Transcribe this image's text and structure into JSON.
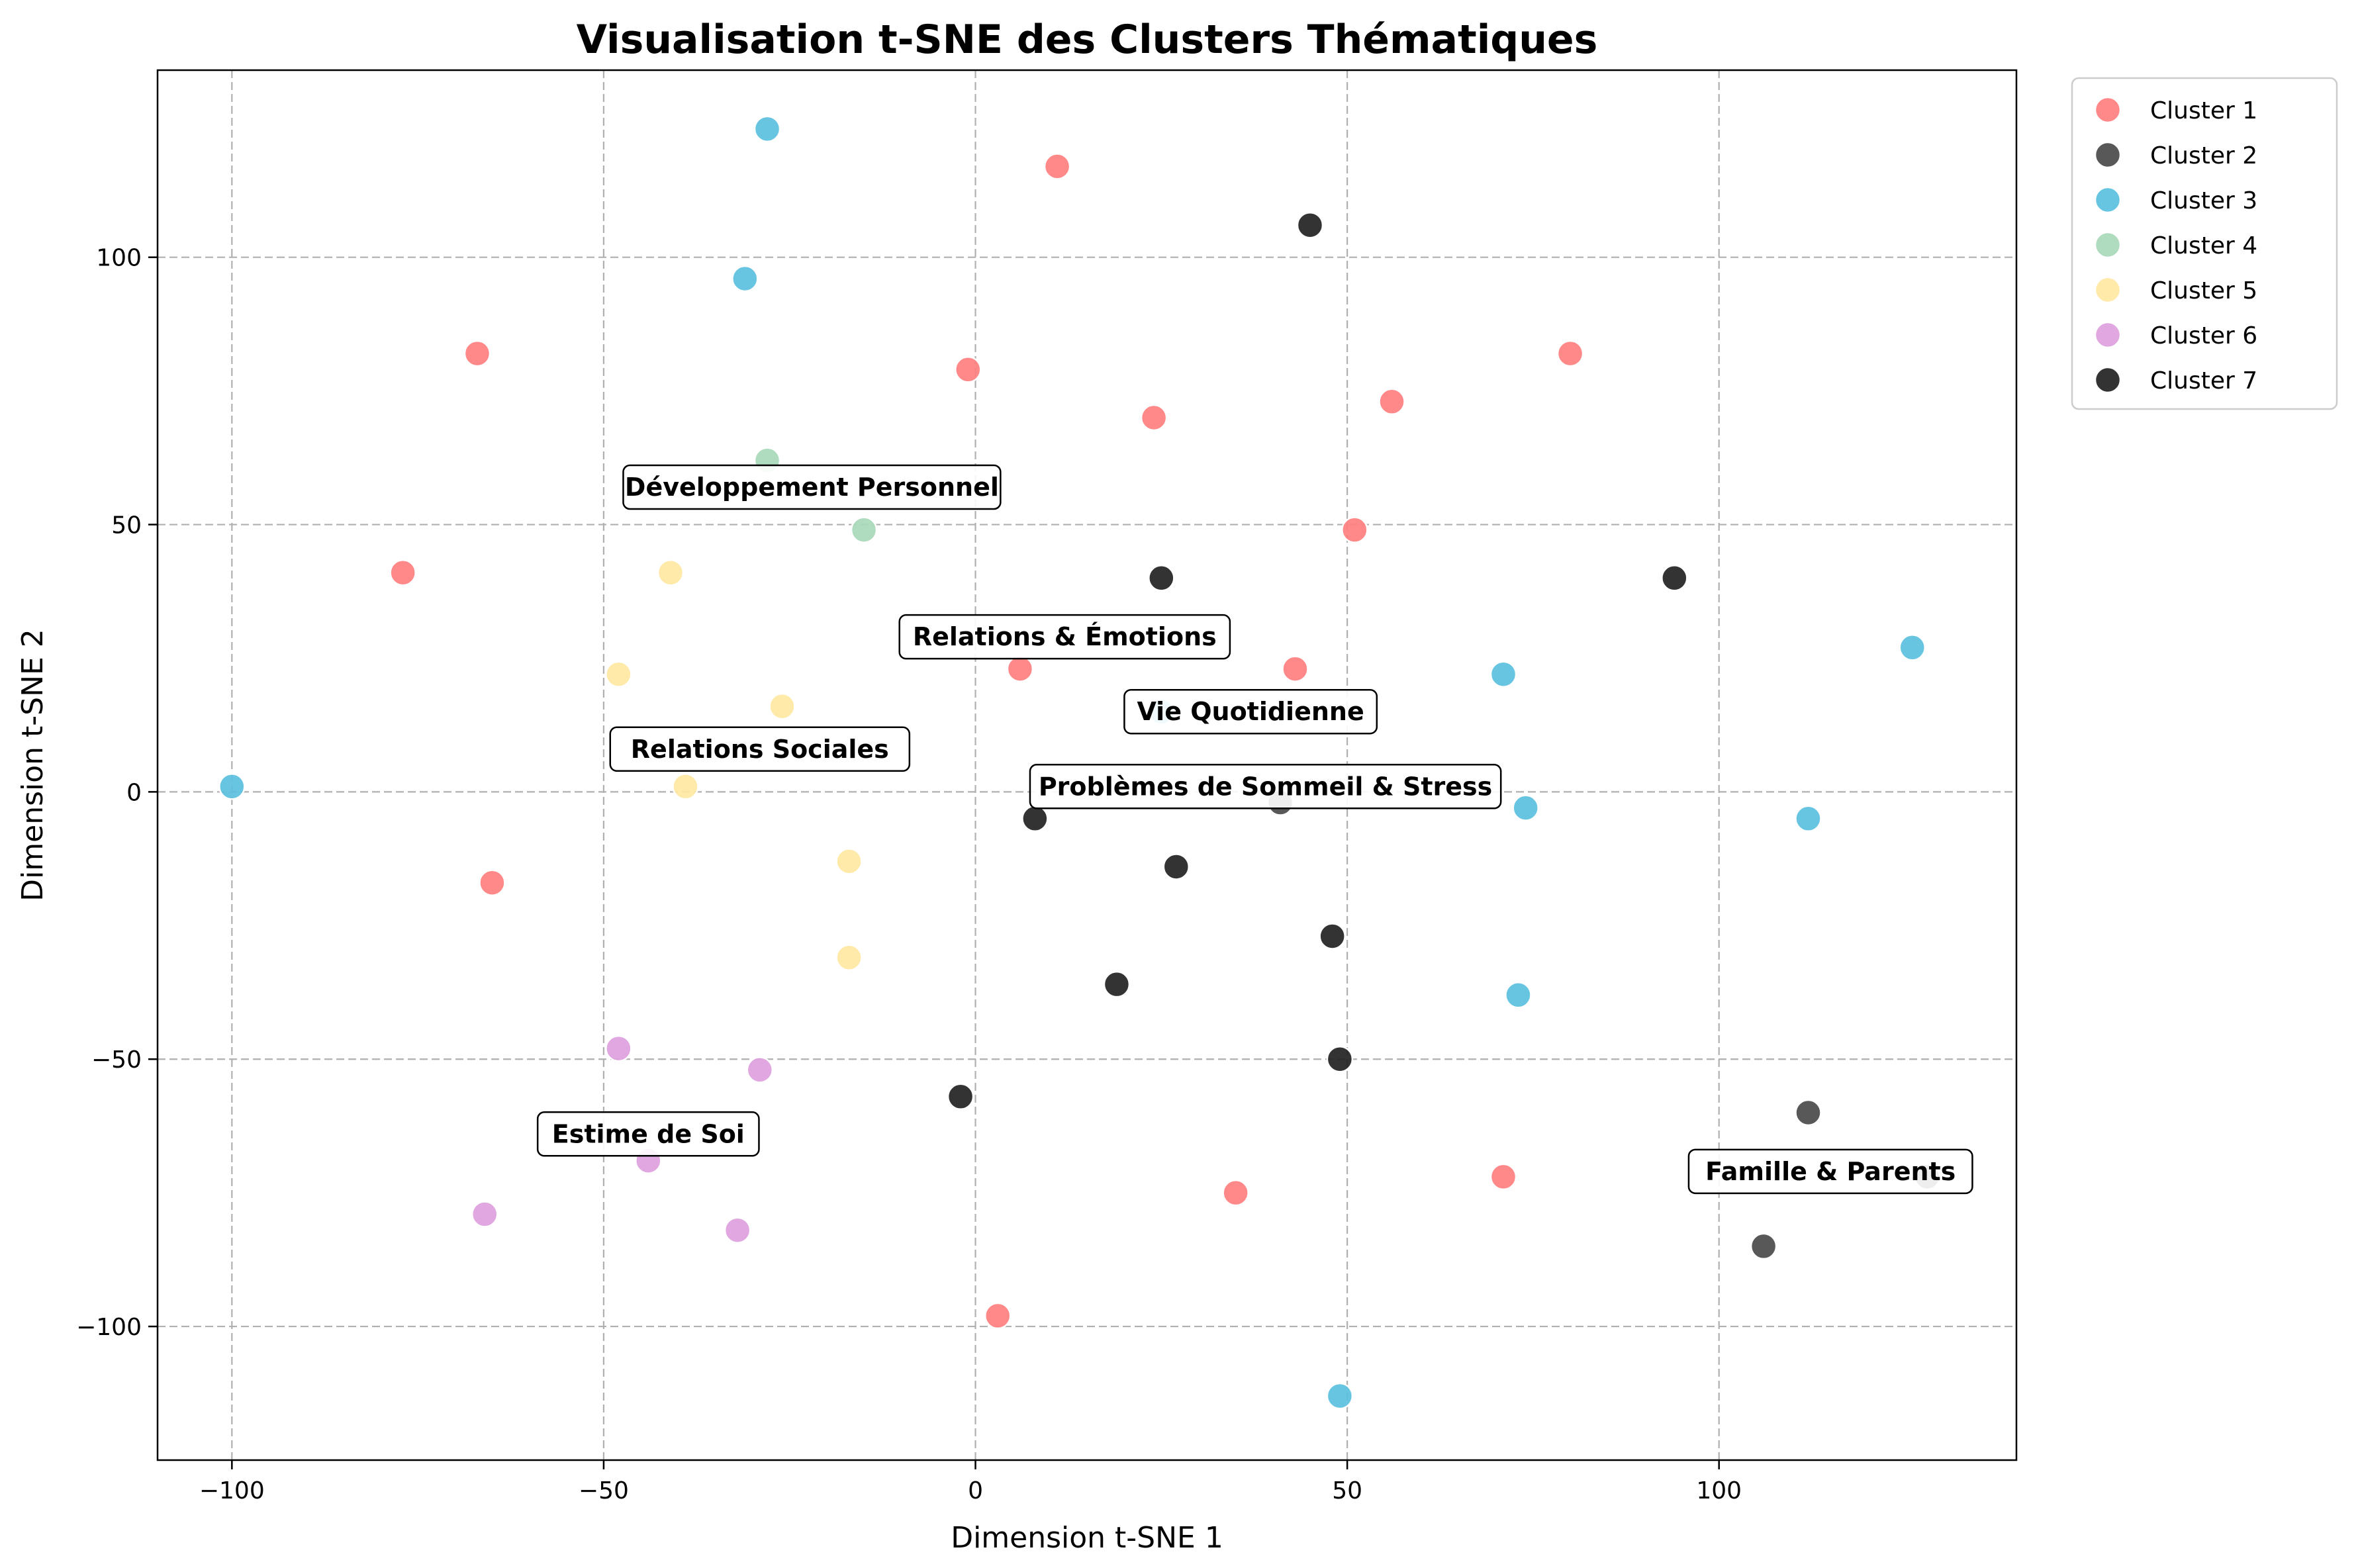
{
  "chart_data": {
    "type": "scatter",
    "title": "Visualisation t-SNE des Clusters Thématiques",
    "xlabel": "Dimension t-SNE 1",
    "ylabel": "Dimension t-SNE 2",
    "xlim": [
      -110,
      140
    ],
    "ylim": [
      -125,
      135
    ],
    "xticks": [
      -100,
      -50,
      0,
      50,
      100
    ],
    "yticks": [
      -100,
      -50,
      0,
      50,
      100
    ],
    "grid": true,
    "legend_position": "outside-top-right",
    "series": [
      {
        "name": "Cluster 1",
        "color": "#FF7F7F",
        "points": [
          [
            11,
            117
          ],
          [
            -67,
            82
          ],
          [
            -1,
            79
          ],
          [
            24,
            70
          ],
          [
            56,
            73
          ],
          [
            80,
            82
          ],
          [
            -77,
            41
          ],
          [
            51,
            49
          ],
          [
            6,
            23
          ],
          [
            43,
            23
          ],
          [
            -65,
            -17
          ],
          [
            35,
            -75
          ],
          [
            71,
            -72
          ],
          [
            3,
            -98
          ]
        ]
      },
      {
        "name": "Cluster 2",
        "color": "#4A4A4A",
        "points": [
          [
            112,
            -60
          ],
          [
            106,
            -85
          ],
          [
            128,
            -72
          ],
          [
            41,
            -2
          ]
        ]
      },
      {
        "name": "Cluster 3",
        "color": "#5BC0DE",
        "points": [
          [
            -28,
            124
          ],
          [
            -31,
            96
          ],
          [
            -100,
            1
          ],
          [
            71,
            22
          ],
          [
            126,
            27
          ],
          [
            112,
            -5
          ],
          [
            74,
            -3
          ],
          [
            73,
            -38
          ],
          [
            49,
            -113
          ],
          [
            25,
            15
          ]
        ]
      },
      {
        "name": "Cluster 4",
        "color": "#A8D8B9",
        "points": [
          [
            -28,
            62
          ],
          [
            -15,
            49
          ]
        ]
      },
      {
        "name": "Cluster 5",
        "color": "#FFE8A3",
        "points": [
          [
            -41,
            41
          ],
          [
            -48,
            22
          ],
          [
            -26,
            16
          ],
          [
            -39,
            1
          ],
          [
            -17,
            -13
          ],
          [
            -17,
            -31
          ]
        ]
      },
      {
        "name": "Cluster 6",
        "color": "#DDA0DD",
        "points": [
          [
            -48,
            -48
          ],
          [
            -29,
            -52
          ],
          [
            -44,
            -69
          ],
          [
            -66,
            -79
          ],
          [
            -32,
            -82
          ]
        ]
      },
      {
        "name": "Cluster 7",
        "color": "#222222",
        "points": [
          [
            45,
            106
          ],
          [
            25,
            40
          ],
          [
            94,
            40
          ],
          [
            8,
            -5
          ],
          [
            27,
            -14
          ],
          [
            48,
            -27
          ],
          [
            19,
            -36
          ],
          [
            49,
            -50
          ],
          [
            -2,
            -57
          ]
        ]
      }
    ],
    "annotations": [
      {
        "text": "Développement Personnel",
        "x": -22,
        "y": 57
      },
      {
        "text": "Relations & Émotions",
        "x": 12,
        "y": 29
      },
      {
        "text": "Vie Quotidienne",
        "x": 37,
        "y": 15
      },
      {
        "text": "Relations Sociales",
        "x": -29,
        "y": 8
      },
      {
        "text": "Problèmes de Sommeil & Stress",
        "x": 39,
        "y": 1
      },
      {
        "text": "Estime de Soi",
        "x": -44,
        "y": -64
      },
      {
        "text": "Famille & Parents",
        "x": 115,
        "y": -71
      }
    ]
  }
}
